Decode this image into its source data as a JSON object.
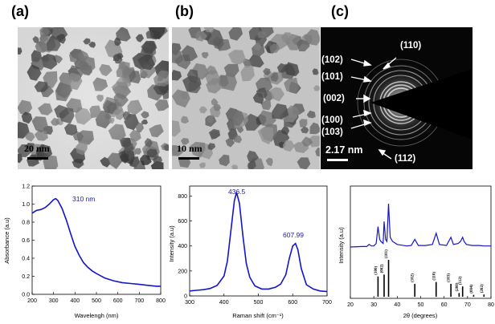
{
  "panels": {
    "a": {
      "label": "(a)",
      "scale": "20 nm"
    },
    "b": {
      "label": "(b)",
      "scale": "10 nm"
    },
    "c": {
      "label": "(c)",
      "scale": "2.17 nm",
      "rings": [
        "(110)",
        "(102)",
        "(101)",
        "(002)",
        "(100)",
        "(103)",
        "(112)"
      ]
    }
  },
  "colors": {
    "line": "#1515c8",
    "annotation": "#1a1aa8",
    "stick": "#000000"
  },
  "chart_data": [
    {
      "type": "line",
      "id": "uv",
      "ylabel": "Absorbance (a.u)",
      "xlabel": "Wavelengh (nm)",
      "xlim": [
        200,
        800
      ],
      "ylim": [
        0.0,
        1.2
      ],
      "xticks": [
        "200",
        "300",
        "400",
        "500",
        "600",
        "700",
        "800"
      ],
      "yticks": [
        "0.0",
        "0.2",
        "0.4",
        "0.6",
        "0.8",
        "1.0",
        "1.2"
      ],
      "annotation": "310 nm",
      "series": [
        {
          "x": [
            200,
            220,
            240,
            260,
            280,
            300,
            310,
            320,
            340,
            360,
            380,
            400,
            420,
            440,
            460,
            480,
            500,
            540,
            580,
            620,
            660,
            700,
            740,
            780,
            800
          ],
          "y": [
            0.9,
            0.93,
            0.94,
            0.96,
            1.0,
            1.05,
            1.06,
            1.04,
            0.95,
            0.82,
            0.67,
            0.53,
            0.43,
            0.35,
            0.3,
            0.26,
            0.23,
            0.18,
            0.15,
            0.13,
            0.12,
            0.11,
            0.1,
            0.09,
            0.09
          ]
        }
      ]
    },
    {
      "type": "line",
      "id": "raman",
      "ylabel": "Intensity (a.u)",
      "xlabel": "Raman shift (cm⁻¹)",
      "xlim": [
        300,
        700
      ],
      "ylim": [
        0,
        880
      ],
      "xticks": [
        "300",
        "400",
        "500",
        "600",
        "700"
      ],
      "yticks": [
        "0",
        "200",
        "400",
        "600",
        "800"
      ],
      "annotations": [
        "436.5",
        "607.99"
      ],
      "series": [
        {
          "x": [
            300,
            320,
            340,
            360,
            380,
            400,
            410,
            420,
            430,
            436.5,
            445,
            455,
            465,
            475,
            490,
            510,
            530,
            550,
            565,
            580,
            590,
            600,
            608,
            615,
            625,
            640,
            660,
            680,
            700
          ],
          "y": [
            40,
            45,
            50,
            60,
            85,
            160,
            280,
            520,
            760,
            830,
            740,
            480,
            260,
            150,
            80,
            55,
            55,
            70,
            95,
            170,
            300,
            400,
            420,
            370,
            220,
            90,
            55,
            40,
            35
          ]
        }
      ]
    },
    {
      "type": "line",
      "id": "xrd",
      "ylabel": "Intensity (a.u)",
      "xlabel": "2θ (degrees)",
      "xlim": [
        20,
        80
      ],
      "xticks": [
        "20",
        "30",
        "40",
        "50",
        "60",
        "70",
        "80"
      ],
      "series": [
        {
          "x": [
            20,
            25,
            27,
            28,
            29,
            30,
            31,
            31.8,
            32.5,
            33,
            34,
            34.4,
            35,
            35.6,
            36.3,
            37,
            38,
            40,
            44,
            46,
            47.5,
            49,
            52,
            55,
            56.6,
            58,
            61,
            62.9,
            64,
            66,
            67,
            67.9,
            68.5,
            69.5,
            72,
            75,
            77,
            80
          ],
          "y": [
            0.55,
            0.56,
            0.56,
            0.6,
            0.57,
            0.57,
            0.62,
            0.95,
            0.7,
            0.66,
            0.62,
            1.05,
            0.7,
            0.66,
            1.4,
            0.74,
            0.66,
            0.6,
            0.57,
            0.58,
            0.7,
            0.58,
            0.58,
            0.6,
            0.82,
            0.6,
            0.58,
            0.74,
            0.6,
            0.62,
            0.66,
            0.74,
            0.66,
            0.6,
            0.58,
            0.58,
            0.57,
            0.57
          ]
        }
      ],
      "reflections": [
        {
          "hkl": "(100)",
          "x": 31.8,
          "h": 0.55
        },
        {
          "hkl": "(002)",
          "x": 34.4,
          "h": 0.6
        },
        {
          "hkl": "(101)",
          "x": 36.3,
          "h": 1.0
        },
        {
          "hkl": "(102)",
          "x": 47.5,
          "h": 0.35
        },
        {
          "hkl": "(110)",
          "x": 56.6,
          "h": 0.4
        },
        {
          "hkl": "(103)",
          "x": 62.9,
          "h": 0.35
        },
        {
          "hkl": "(200)",
          "x": 66.4,
          "h": 0.1
        },
        {
          "hkl": "(112)",
          "x": 67.9,
          "h": 0.28
        },
        {
          "hkl": "(004)",
          "x": 72.6,
          "h": 0.05
        },
        {
          "hkl": "(202)",
          "x": 77.0,
          "h": 0.06
        }
      ]
    }
  ]
}
